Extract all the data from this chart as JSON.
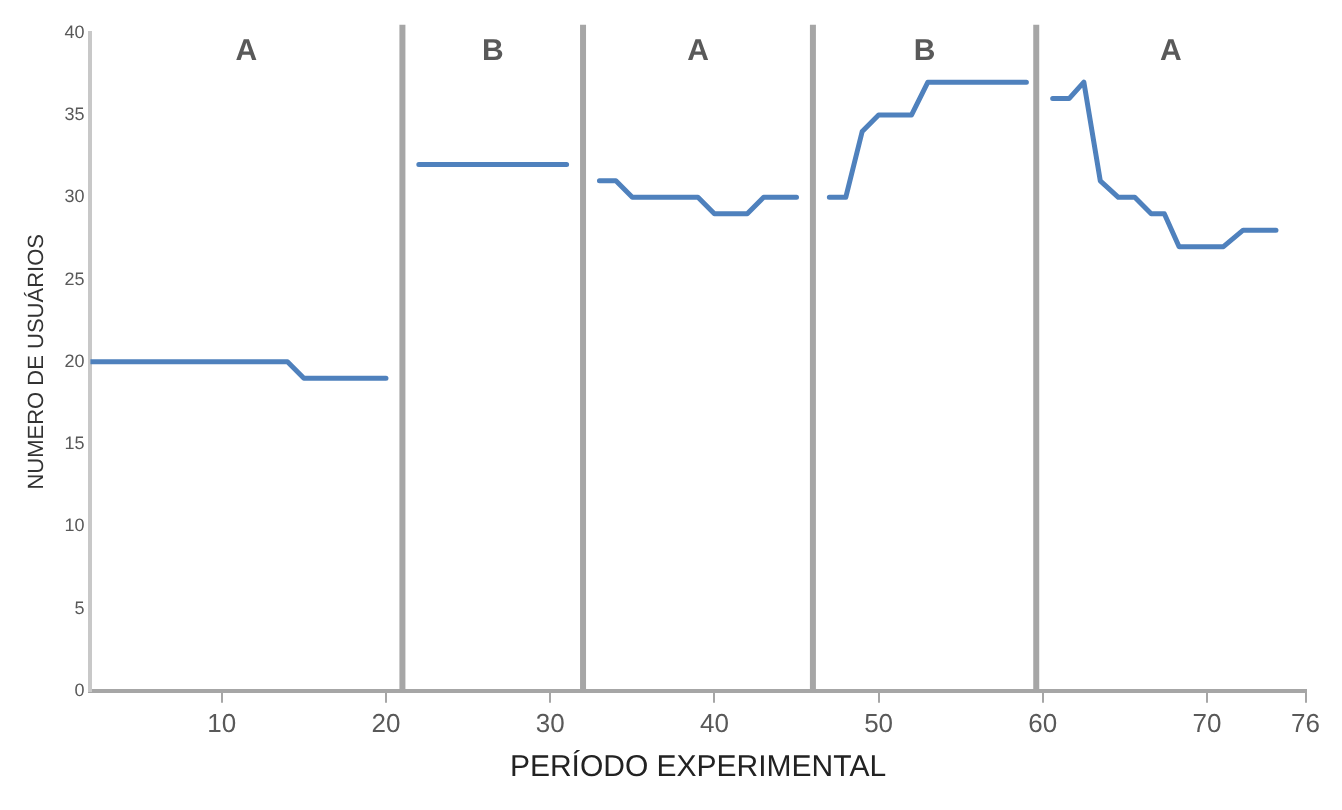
{
  "chart_data": {
    "type": "line",
    "xlabel": "PERÍODO EXPERIMENTAL",
    "ylabel": "NUMERO DE USUÁRIOS",
    "x": [
      2,
      3,
      4,
      5,
      6,
      7,
      8,
      9,
      10,
      11,
      12,
      13,
      14,
      15,
      16,
      17,
      18,
      19,
      20,
      21,
      22,
      23,
      24,
      25,
      26,
      27,
      28,
      29,
      30,
      31,
      32,
      33,
      34,
      35,
      36,
      37,
      38,
      39,
      40,
      41,
      42,
      43,
      44,
      45,
      46,
      47,
      48,
      49,
      50,
      51,
      52,
      53,
      54,
      55,
      56,
      57,
      58,
      59,
      60,
      60.6,
      61.6,
      62.5,
      63.5,
      64.6,
      65.6,
      66.6,
      67.4,
      68.3,
      69,
      70,
      71,
      72.2,
      73,
      74.2
    ],
    "series": [
      {
        "color": "#4f81bd",
        "values": [
          20,
          20,
          20,
          20,
          20,
          20,
          20,
          20,
          20,
          20,
          20,
          20,
          20,
          19,
          19,
          19,
          19,
          19,
          19,
          null,
          32,
          32,
          32,
          32,
          32,
          32,
          32,
          32,
          32,
          32,
          null,
          31,
          31,
          30,
          30,
          30,
          30,
          30,
          29,
          29,
          29,
          30,
          30,
          30,
          null,
          30,
          30,
          34,
          35,
          35,
          35,
          37,
          37,
          37,
          37,
          37,
          37,
          37,
          null,
          36,
          36,
          37,
          31,
          30,
          30,
          29,
          29,
          27,
          27,
          27,
          27,
          28,
          28,
          28
        ]
      }
    ],
    "xlim": [
      2,
      76
    ],
    "xticks": [
      10,
      20,
      30,
      40,
      50,
      60,
      70,
      76
    ],
    "ylim": [
      0,
      40
    ],
    "yticks": [
      0,
      5,
      10,
      15,
      20,
      25,
      30,
      35,
      40
    ],
    "grid": false,
    "legend": false,
    "marker": "none",
    "line_style": "solid",
    "ref_lines": [
      {
        "axis": "x",
        "value": 21,
        "color": "#a6a6a6"
      },
      {
        "axis": "x",
        "value": 32,
        "color": "#a6a6a6"
      },
      {
        "axis": "x",
        "value": 46,
        "color": "#a6a6a6"
      },
      {
        "axis": "x",
        "value": 59.6,
        "color": "#a6a6a6"
      }
    ],
    "annotations": [
      "A",
      "B",
      "A",
      "B",
      "A"
    ]
  }
}
